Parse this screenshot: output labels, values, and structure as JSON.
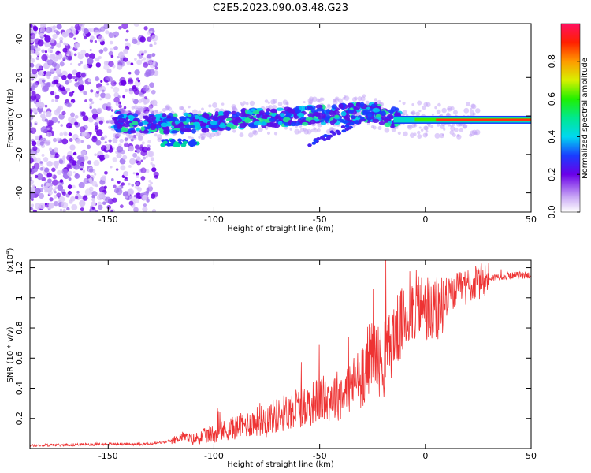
{
  "title": "C2E5.2023.090.03.48.G23",
  "chart_data": [
    {
      "type": "heatmap",
      "name": "spectrogram",
      "xlabel": "Height of straight line (km)",
      "ylabel": "Frequency (Hz)",
      "xlim": [
        -187,
        50
      ],
      "ylim": [
        -50,
        48
      ],
      "xticks": [
        -150,
        -100,
        -50,
        0,
        50
      ],
      "yticks": [
        -40,
        -20,
        0,
        20,
        40
      ],
      "colorbar": {
        "label": "Normalized spectral amplitude",
        "range": [
          0,
          1
        ],
        "ticks": [
          0.0,
          0.2,
          0.4,
          0.6,
          0.8
        ]
      },
      "ridge": [
        {
          "x": -145,
          "y": -4
        },
        {
          "x": -120,
          "y": -4
        },
        {
          "x": -100,
          "y": -3
        },
        {
          "x": -80,
          "y": -1
        },
        {
          "x": -60,
          "y": 0
        },
        {
          "x": -40,
          "y": 1
        },
        {
          "x": -25,
          "y": 2
        },
        {
          "x": -15,
          "y": -1
        },
        {
          "x": 0,
          "y": -2
        },
        {
          "x": 20,
          "y": -2
        },
        {
          "x": 50,
          "y": -2
        }
      ]
    },
    {
      "type": "line",
      "name": "snr",
      "xlabel": "Height of straight line (km)",
      "ylabel": "SNR (10 * v/v)",
      "multiplier": "(x10",
      "multiplier_exp": "4",
      "multiplier_close": ")",
      "xlim": [
        -187,
        50
      ],
      "ylim": [
        0,
        1.25
      ],
      "xticks": [
        -150,
        -100,
        -50,
        0,
        50
      ],
      "yticks": [
        0.2,
        0.4,
        0.6,
        0.8,
        1.0,
        1.2
      ],
      "series": [
        {
          "name": "SNR",
          "color": "#ee3333",
          "x": [
            -187,
            -170,
            -150,
            -130,
            -120,
            -115,
            -110,
            -100,
            -90,
            -80,
            -70,
            -60,
            -50,
            -40,
            -35,
            -30,
            -25,
            -20,
            -15,
            -10,
            -5,
            0,
            5,
            10,
            15,
            20,
            25,
            30,
            40,
            50
          ],
          "y": [
            0.02,
            0.025,
            0.03,
            0.03,
            0.05,
            0.08,
            0.06,
            0.1,
            0.14,
            0.18,
            0.22,
            0.27,
            0.32,
            0.36,
            0.42,
            0.5,
            0.65,
            0.55,
            0.75,
            0.85,
            0.95,
            0.93,
            0.9,
            1.0,
            1.05,
            1.08,
            1.1,
            1.13,
            1.15,
            1.15
          ]
        }
      ]
    }
  ]
}
